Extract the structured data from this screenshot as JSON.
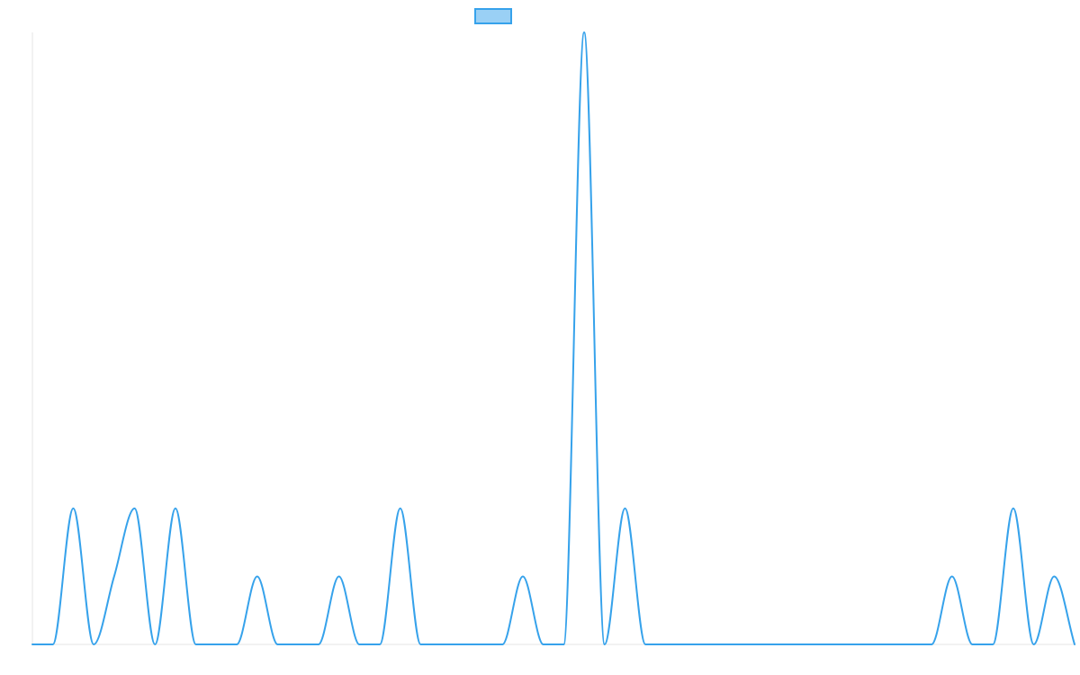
{
  "chart_data": {
    "type": "line",
    "title": "",
    "xlabel": "",
    "ylabel": "",
    "legend": {
      "position": "top-center",
      "entries": [
        ""
      ]
    },
    "grid": false,
    "smooth": true,
    "x": [
      0,
      1,
      2,
      3,
      4,
      5,
      6,
      7,
      8,
      9,
      10,
      11,
      12,
      13,
      14,
      15,
      16,
      17,
      18,
      19,
      20,
      21,
      22,
      23,
      24,
      25,
      26,
      27,
      28,
      29,
      30,
      31,
      32,
      33,
      34,
      35,
      36,
      37,
      38,
      39,
      40,
      41,
      42,
      43,
      44,
      45,
      46,
      47,
      48,
      49,
      50,
      51
    ],
    "xlim": [
      0,
      51
    ],
    "ylim": [
      0,
      9
    ],
    "series": [
      {
        "name": "",
        "color": "#36a2eb",
        "fill": "#9ad0f5",
        "values": [
          0,
          0,
          2,
          0,
          1,
          2,
          0,
          2,
          0,
          0,
          0,
          1,
          0,
          0,
          0,
          1,
          0,
          0,
          2,
          0,
          0,
          0,
          0,
          0,
          1,
          0,
          0,
          9,
          0,
          2,
          0,
          0,
          0,
          0,
          0,
          0,
          0,
          0,
          0,
          0,
          0,
          0,
          0,
          0,
          0,
          1,
          0,
          0,
          2,
          0,
          1,
          0
        ]
      }
    ]
  }
}
